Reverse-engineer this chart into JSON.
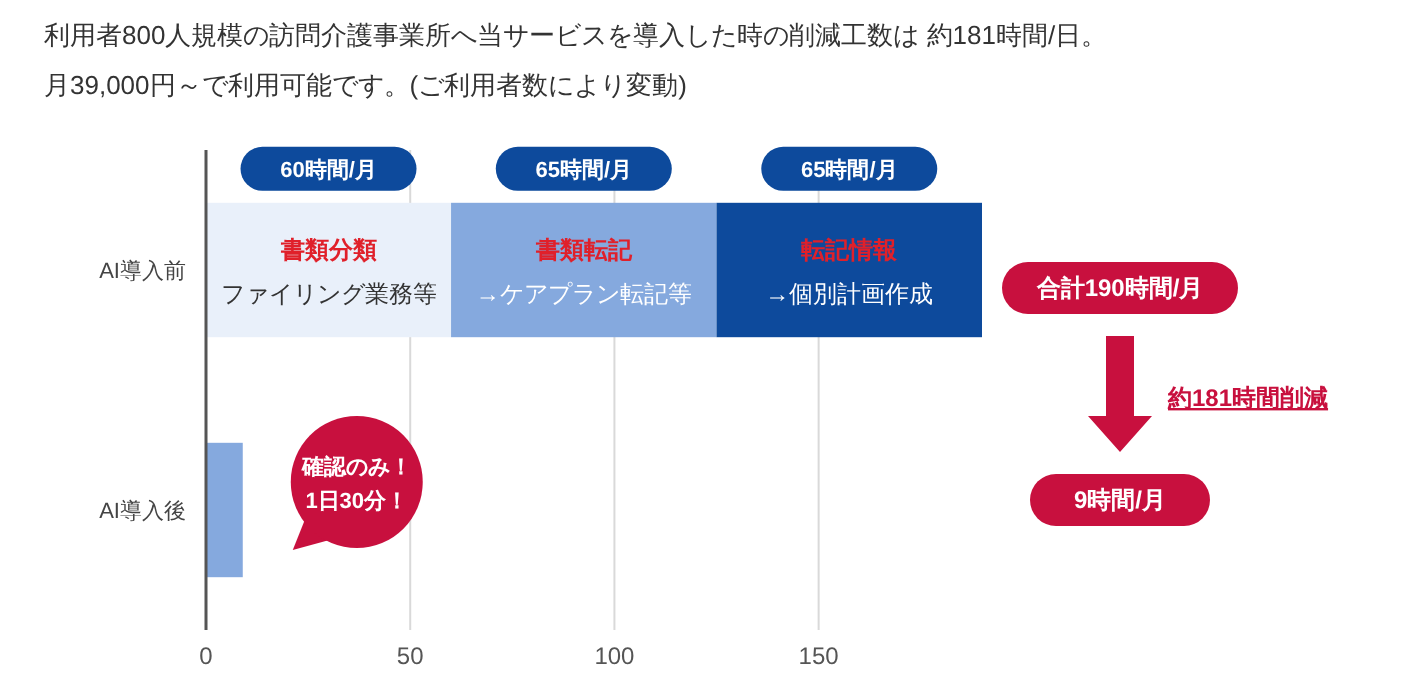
{
  "chart_data": {
    "type": "bar",
    "orientation": "horizontal",
    "stacked": true,
    "title": "利用者800人規模の訪問介護事業所へ当サービスを導入した時の削減工数は  約181時間/日。",
    "subtitle": "月39,000円～で利用可能です。(ご利用者数により変動)",
    "categories": [
      "AI導入前",
      "AI導入後"
    ],
    "series": [
      {
        "color": "#e9f0fa",
        "values": [
          60,
          null
        ]
      },
      {
        "color": "#85a9de",
        "values": [
          65,
          null
        ]
      },
      {
        "color": "#0d4a9c",
        "values": [
          65,
          null
        ]
      },
      {
        "color": "#85a9de",
        "values": [
          null,
          9
        ]
      }
    ],
    "xlim": [
      0,
      190
    ],
    "xticks": [
      0,
      50,
      100,
      150
    ],
    "grid": "x",
    "annotations": [
      "60時間/月",
      "書類分類",
      "ファイリング業務等",
      "65時間/月",
      "書類転記",
      "→ケアプラン転記等",
      "65時間/月",
      "転記情報",
      "→個別計画作成",
      "確認のみ！",
      "1日30分！",
      "合計190時間/月",
      "約181時間削減",
      "9時間/月"
    ]
  }
}
